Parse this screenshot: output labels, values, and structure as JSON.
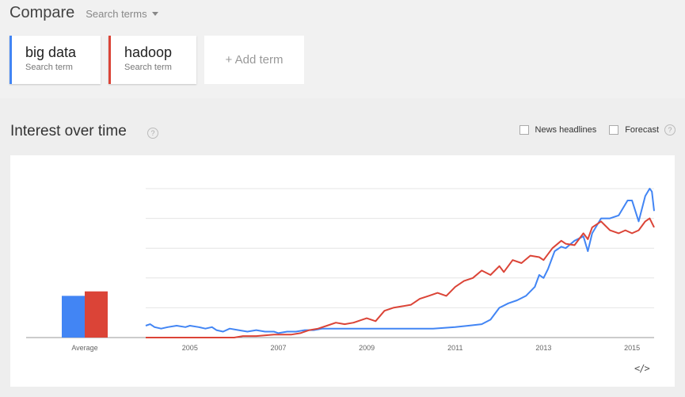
{
  "header": {
    "title": "Compare",
    "search_terms_label": "Search terms"
  },
  "terms": [
    {
      "name": "big data",
      "sub": "Search term",
      "color": "#4285f4"
    },
    {
      "name": "hadoop",
      "sub": "Search term",
      "color": "#db4437"
    }
  ],
  "add_term_label": "+ Add term",
  "panel": {
    "title": "Interest over time",
    "help_glyph": "?",
    "options": [
      {
        "label": "News headlines",
        "checked": false
      },
      {
        "label": "Forecast",
        "checked": false
      }
    ],
    "embed_glyph": "</>"
  },
  "chart_data": {
    "type": "line",
    "xlim": [
      2004.0,
      2015.5
    ],
    "ylim": [
      0,
      100
    ],
    "y_gridlines": [
      20,
      40,
      60,
      80,
      100
    ],
    "x_ticks": [
      2005,
      2007,
      2009,
      2011,
      2013,
      2015
    ],
    "x_tick_labels": [
      "2005",
      "2007",
      "2009",
      "2011",
      "2013",
      "2015"
    ],
    "average": {
      "label": "Average",
      "values": [
        28,
        31
      ]
    },
    "series": [
      {
        "color": "#4285f4",
        "points": [
          [
            2004.0,
            8
          ],
          [
            2004.1,
            9
          ],
          [
            2004.2,
            7
          ],
          [
            2004.35,
            6
          ],
          [
            2004.5,
            7
          ],
          [
            2004.7,
            8
          ],
          [
            2004.9,
            7
          ],
          [
            2005.0,
            8
          ],
          [
            2005.2,
            7
          ],
          [
            2005.35,
            6
          ],
          [
            2005.5,
            7
          ],
          [
            2005.6,
            5
          ],
          [
            2005.75,
            4
          ],
          [
            2005.9,
            6
          ],
          [
            2006.1,
            5
          ],
          [
            2006.3,
            4
          ],
          [
            2006.5,
            5
          ],
          [
            2006.7,
            4
          ],
          [
            2006.9,
            4
          ],
          [
            2007.0,
            3
          ],
          [
            2007.2,
            4
          ],
          [
            2007.4,
            4
          ],
          [
            2007.6,
            5
          ],
          [
            2007.8,
            5
          ],
          [
            2008.0,
            6
          ],
          [
            2008.5,
            6
          ],
          [
            2009.0,
            6
          ],
          [
            2009.5,
            6
          ],
          [
            2010.0,
            6
          ],
          [
            2010.5,
            6
          ],
          [
            2011.0,
            7
          ],
          [
            2011.3,
            8
          ],
          [
            2011.6,
            9
          ],
          [
            2011.8,
            12
          ],
          [
            2012.0,
            20
          ],
          [
            2012.2,
            23
          ],
          [
            2012.4,
            25
          ],
          [
            2012.6,
            28
          ],
          [
            2012.8,
            34
          ],
          [
            2012.9,
            42
          ],
          [
            2013.0,
            40
          ],
          [
            2013.1,
            46
          ],
          [
            2013.25,
            58
          ],
          [
            2013.4,
            61
          ],
          [
            2013.5,
            60
          ],
          [
            2013.7,
            65
          ],
          [
            2013.9,
            68
          ],
          [
            2014.0,
            58
          ],
          [
            2014.1,
            70
          ],
          [
            2014.3,
            80
          ],
          [
            2014.5,
            80
          ],
          [
            2014.7,
            82
          ],
          [
            2014.9,
            92
          ],
          [
            2015.0,
            92
          ],
          [
            2015.15,
            78
          ],
          [
            2015.3,
            95
          ],
          [
            2015.4,
            100
          ],
          [
            2015.45,
            98
          ],
          [
            2015.5,
            85
          ]
        ]
      },
      {
        "color": "#db4437",
        "points": [
          [
            2004.0,
            0
          ],
          [
            2005.0,
            0
          ],
          [
            2006.0,
            0
          ],
          [
            2006.2,
            1
          ],
          [
            2006.5,
            1
          ],
          [
            2006.9,
            2
          ],
          [
            2007.3,
            2
          ],
          [
            2007.5,
            3
          ],
          [
            2007.7,
            5
          ],
          [
            2007.9,
            6
          ],
          [
            2008.1,
            8
          ],
          [
            2008.3,
            10
          ],
          [
            2008.5,
            9
          ],
          [
            2008.7,
            10
          ],
          [
            2008.9,
            12
          ],
          [
            2009.0,
            13
          ],
          [
            2009.2,
            11
          ],
          [
            2009.4,
            18
          ],
          [
            2009.6,
            20
          ],
          [
            2009.8,
            21
          ],
          [
            2010.0,
            22
          ],
          [
            2010.2,
            26
          ],
          [
            2010.4,
            28
          ],
          [
            2010.6,
            30
          ],
          [
            2010.8,
            28
          ],
          [
            2011.0,
            34
          ],
          [
            2011.2,
            38
          ],
          [
            2011.4,
            40
          ],
          [
            2011.6,
            45
          ],
          [
            2011.8,
            42
          ],
          [
            2012.0,
            48
          ],
          [
            2012.1,
            44
          ],
          [
            2012.3,
            52
          ],
          [
            2012.5,
            50
          ],
          [
            2012.7,
            55
          ],
          [
            2012.9,
            54
          ],
          [
            2013.0,
            52
          ],
          [
            2013.2,
            60
          ],
          [
            2013.4,
            65
          ],
          [
            2013.5,
            63
          ],
          [
            2013.7,
            62
          ],
          [
            2013.9,
            70
          ],
          [
            2014.0,
            66
          ],
          [
            2014.1,
            74
          ],
          [
            2014.3,
            78
          ],
          [
            2014.5,
            72
          ],
          [
            2014.7,
            70
          ],
          [
            2014.85,
            72
          ],
          [
            2015.0,
            70
          ],
          [
            2015.15,
            72
          ],
          [
            2015.3,
            78
          ],
          [
            2015.4,
            80
          ],
          [
            2015.5,
            74
          ]
        ]
      }
    ]
  }
}
